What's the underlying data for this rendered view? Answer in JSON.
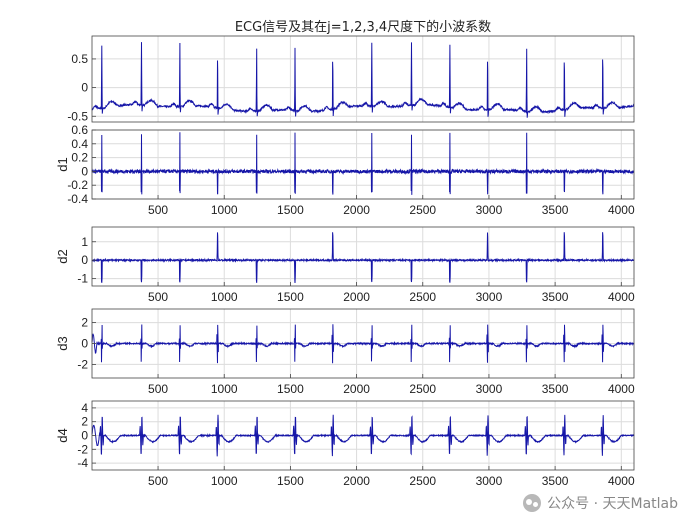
{
  "chart_data": [
    {
      "type": "line",
      "title": "ECG信号及其在j=1,2,3,4尺度下的小波系数",
      "ylabel": "",
      "xlim": [
        1,
        4096
      ],
      "ylim": [
        -0.6,
        0.9
      ],
      "yticks": [
        -0.5,
        0,
        0.5
      ],
      "xticks": [],
      "grid": true,
      "series": [
        {
          "color": "#1616a8"
        }
      ]
    },
    {
      "type": "line",
      "ylabel": "d1",
      "xlim": [
        1,
        4096
      ],
      "ylim": [
        -0.4,
        0.6
      ],
      "yticks": [
        -0.4,
        -0.2,
        0,
        0.2,
        0.4,
        0.6
      ],
      "xticks": [
        500,
        1000,
        1500,
        2000,
        2500,
        3000,
        3500,
        4000
      ],
      "grid": true,
      "series": [
        {
          "color": "#1616a8"
        }
      ]
    },
    {
      "type": "line",
      "ylabel": "d2",
      "xlim": [
        1,
        4096
      ],
      "ylim": [
        -1.4,
        1.8
      ],
      "yticks": [
        -1,
        0,
        1
      ],
      "xticks": [
        500,
        1000,
        1500,
        2000,
        2500,
        3000,
        3500,
        4000
      ],
      "grid": true,
      "series": [
        {
          "color": "#1616a8"
        }
      ]
    },
    {
      "type": "line",
      "ylabel": "d3",
      "xlim": [
        1,
        4096
      ],
      "ylim": [
        -3.3,
        3.3
      ],
      "yticks": [
        -2,
        0,
        2
      ],
      "xticks": [
        500,
        1000,
        1500,
        2000,
        2500,
        3000,
        3500,
        4000
      ],
      "grid": true,
      "series": [
        {
          "color": "#1616a8"
        }
      ]
    },
    {
      "type": "line",
      "ylabel": "d4",
      "xlim": [
        1,
        4096
      ],
      "ylim": [
        -5,
        5
      ],
      "yticks": [
        -4,
        -2,
        0,
        2,
        4
      ],
      "xticks": [
        500,
        1000,
        1500,
        2000,
        2500,
        3000,
        3500,
        4000
      ],
      "grid": true,
      "series": [
        {
          "color": "#1616a8"
        }
      ]
    }
  ],
  "beats": [
    75,
    375,
    665,
    950,
    1245,
    1535,
    1820,
    2115,
    2415,
    2705,
    2990,
    3285,
    3570,
    3860
  ],
  "watermark": {
    "text": "公众号 · 天天Matlab",
    "icon": "wechat-icon"
  }
}
